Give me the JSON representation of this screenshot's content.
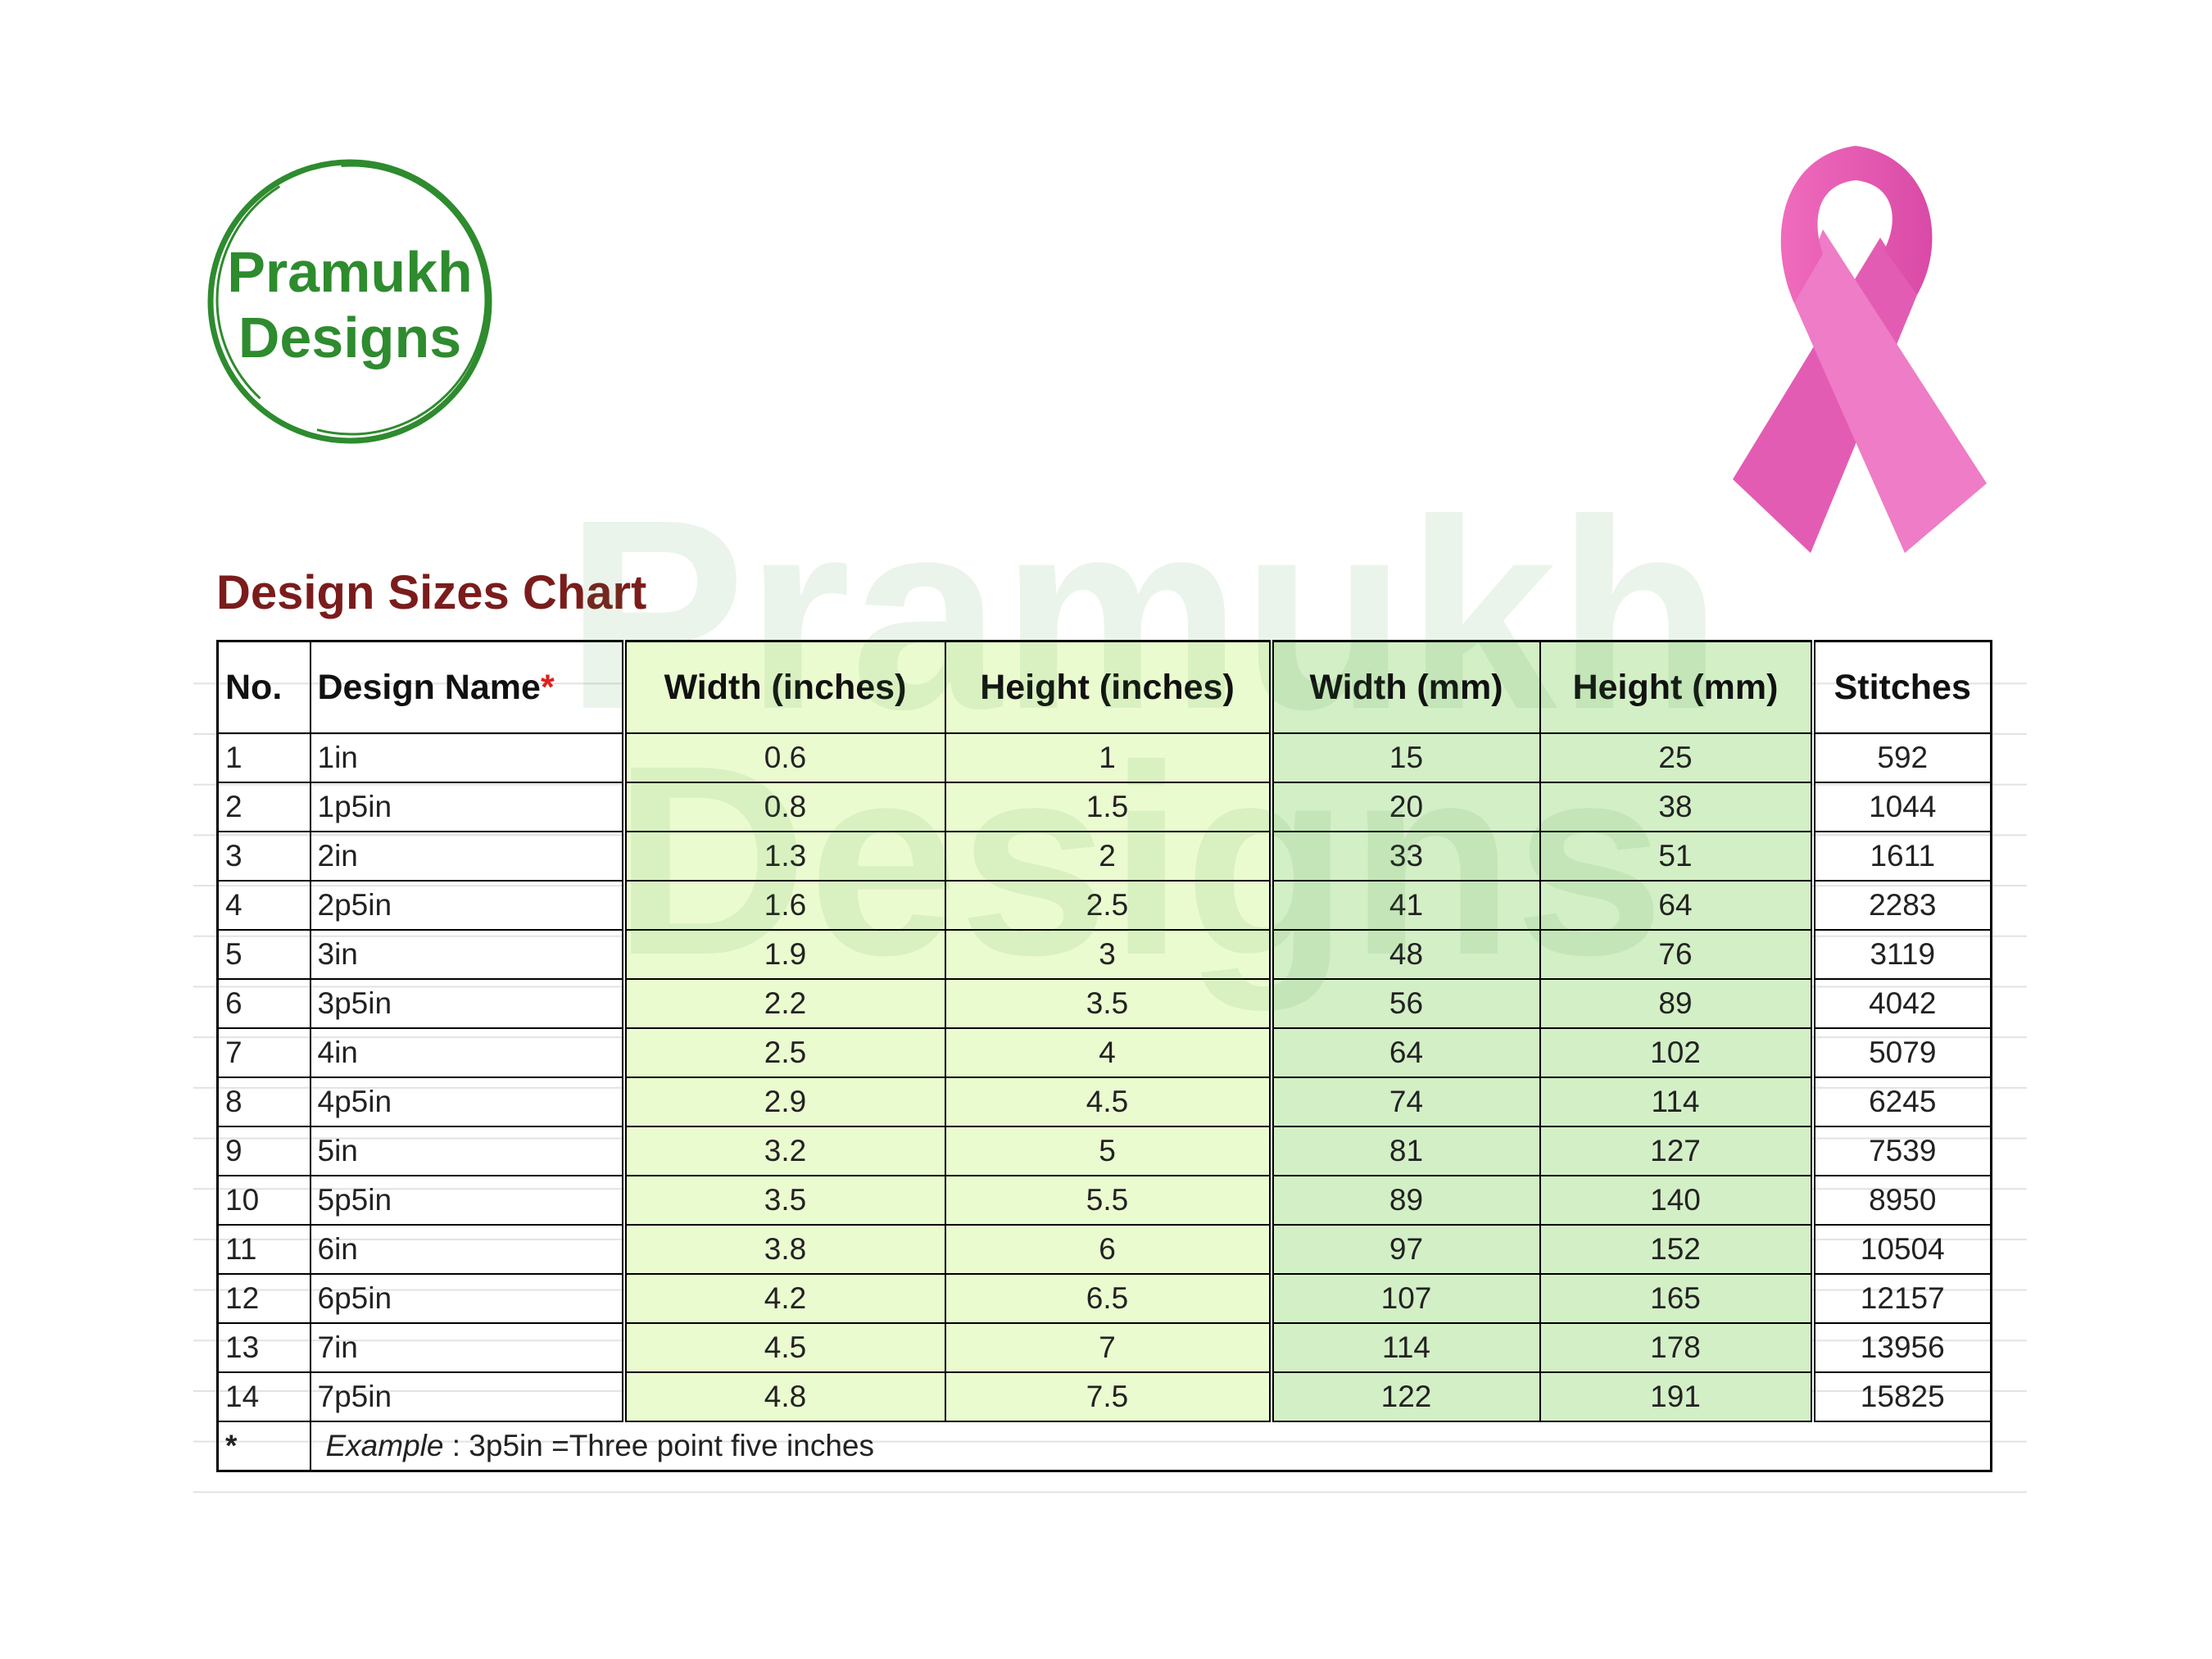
{
  "logo": {
    "line1": "Pramukh",
    "line2": "Designs"
  },
  "watermark": {
    "line1": "Pramukh",
    "line2": "Designs"
  },
  "title": "Design Sizes Chart",
  "table": {
    "headers": [
      "No.",
      "Design Name",
      "Width (inches)",
      "Height (inches)",
      "Width (mm)",
      "Height (mm)",
      "Stitches"
    ],
    "header_marker": "*",
    "rows": [
      [
        1,
        "1in",
        0.6,
        1,
        15,
        25,
        592
      ],
      [
        2,
        "1p5in",
        0.8,
        1.5,
        20,
        38,
        1044
      ],
      [
        3,
        "2in",
        1.3,
        2,
        33,
        51,
        1611
      ],
      [
        4,
        "2p5in",
        1.6,
        2.5,
        41,
        64,
        2283
      ],
      [
        5,
        "3in",
        1.9,
        3,
        48,
        76,
        3119
      ],
      [
        6,
        "3p5in",
        2.2,
        3.5,
        56,
        89,
        4042
      ],
      [
        7,
        "4in",
        2.5,
        4,
        64,
        102,
        5079
      ],
      [
        8,
        "4p5in",
        2.9,
        4.5,
        74,
        114,
        6245
      ],
      [
        9,
        "5in",
        3.2,
        5,
        81,
        127,
        7539
      ],
      [
        10,
        "5p5in",
        3.5,
        5.5,
        89,
        140,
        8950
      ],
      [
        11,
        "6in",
        3.8,
        6,
        97,
        152,
        10504
      ],
      [
        12,
        "6p5in",
        4.2,
        6.5,
        107,
        165,
        12157
      ],
      [
        13,
        "7in",
        4.5,
        7,
        114,
        178,
        13956
      ],
      [
        14,
        "7p5in",
        4.8,
        7.5,
        122,
        191,
        15825
      ]
    ],
    "footnote": {
      "marker": "*",
      "label": "Example",
      "text": " : 3p5in =Three point five inches"
    }
  }
}
